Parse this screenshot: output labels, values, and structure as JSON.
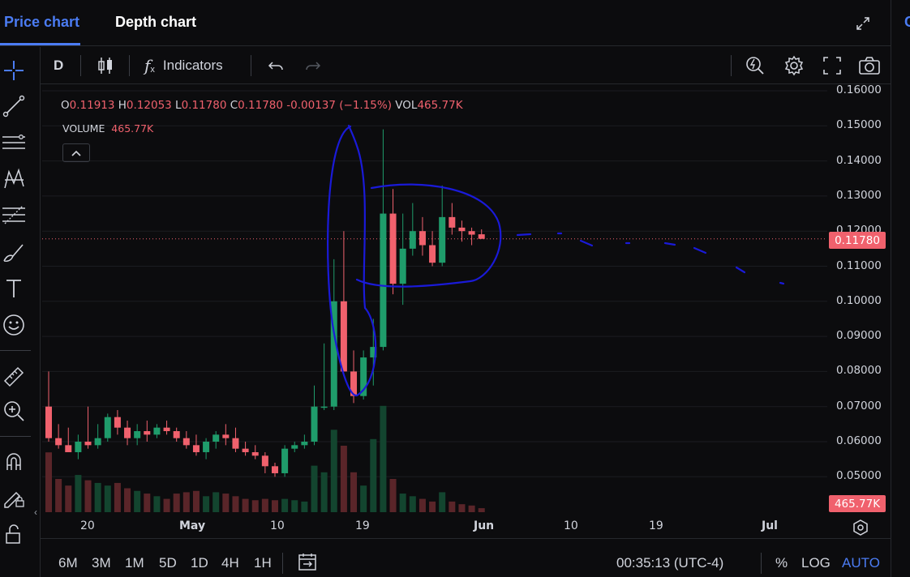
{
  "tabs": [
    {
      "label": "Price chart",
      "active": true
    },
    {
      "label": "Depth chart",
      "active": false
    }
  ],
  "right_peek_label": "C",
  "toolbar": {
    "interval": "D",
    "indicators_label": "Indicators",
    "indicators_glyph": "f",
    "indicators_sub": "x"
  },
  "legend": {
    "open_label": "O",
    "open": "0.11913",
    "high_label": "H",
    "high": "0.12053",
    "low_label": "L",
    "low": "0.11780",
    "close_label": "C",
    "close": "0.11780",
    "change": "-0.00137 (−1.15%)",
    "vol_label": "VOL",
    "vol": "465.77K",
    "volume_label": "VOLUME",
    "volume_value": "465.77K"
  },
  "price_axis": [
    "0.16000",
    "0.15000",
    "0.14000",
    "0.13000",
    "0.12000",
    "0.11000",
    "0.10000",
    "0.09000",
    "0.08000",
    "0.07000",
    "0.06000",
    "0.05000"
  ],
  "last_price_tag": "0.11780",
  "volume_tag": "465.77K",
  "time_axis": [
    {
      "label": "20",
      "bold": false
    },
    {
      "label": "May",
      "bold": true
    },
    {
      "label": "10",
      "bold": false
    },
    {
      "label": "19",
      "bold": false
    },
    {
      "label": "Jun",
      "bold": true
    },
    {
      "label": "10",
      "bold": false
    },
    {
      "label": "19",
      "bold": false
    },
    {
      "label": "Jul",
      "bold": true
    }
  ],
  "bottom": {
    "ranges": [
      "6M",
      "3M",
      "1M",
      "5D",
      "1D",
      "4H",
      "1H"
    ],
    "clock": "00:35:13 (UTC-4)",
    "percent": "%",
    "log": "LOG",
    "auto": "AUTO"
  },
  "colors": {
    "up": "#1f9c6b",
    "down": "#f0616d",
    "accent": "#4b7cf3",
    "annotation": "#1a1ad8"
  },
  "chart_data": {
    "type": "candlestick",
    "ylim": [
      0.045,
      0.16
    ],
    "candles": [
      {
        "o": 0.07,
        "h": 0.08,
        "l": 0.06,
        "c": 0.061,
        "v": 45
      },
      {
        "o": 0.061,
        "h": 0.065,
        "l": 0.058,
        "c": 0.059,
        "v": 25
      },
      {
        "o": 0.059,
        "h": 0.064,
        "l": 0.057,
        "c": 0.057,
        "v": 20
      },
      {
        "o": 0.057,
        "h": 0.062,
        "l": 0.055,
        "c": 0.06,
        "v": 28
      },
      {
        "o": 0.06,
        "h": 0.07,
        "l": 0.058,
        "c": 0.059,
        "v": 24
      },
      {
        "o": 0.059,
        "h": 0.065,
        "l": 0.058,
        "c": 0.061,
        "v": 22
      },
      {
        "o": 0.061,
        "h": 0.068,
        "l": 0.06,
        "c": 0.067,
        "v": 20
      },
      {
        "o": 0.067,
        "h": 0.069,
        "l": 0.062,
        "c": 0.064,
        "v": 22
      },
      {
        "o": 0.064,
        "h": 0.066,
        "l": 0.059,
        "c": 0.061,
        "v": 18
      },
      {
        "o": 0.061,
        "h": 0.065,
        "l": 0.059,
        "c": 0.063,
        "v": 16
      },
      {
        "o": 0.063,
        "h": 0.066,
        "l": 0.06,
        "c": 0.062,
        "v": 14
      },
      {
        "o": 0.062,
        "h": 0.065,
        "l": 0.061,
        "c": 0.064,
        "v": 12
      },
      {
        "o": 0.064,
        "h": 0.066,
        "l": 0.062,
        "c": 0.063,
        "v": 10
      },
      {
        "o": 0.063,
        "h": 0.064,
        "l": 0.06,
        "c": 0.061,
        "v": 14
      },
      {
        "o": 0.061,
        "h": 0.063,
        "l": 0.058,
        "c": 0.059,
        "v": 15
      },
      {
        "o": 0.059,
        "h": 0.062,
        "l": 0.056,
        "c": 0.057,
        "v": 16
      },
      {
        "o": 0.057,
        "h": 0.061,
        "l": 0.055,
        "c": 0.06,
        "v": 12
      },
      {
        "o": 0.06,
        "h": 0.063,
        "l": 0.058,
        "c": 0.062,
        "v": 15
      },
      {
        "o": 0.062,
        "h": 0.065,
        "l": 0.059,
        "c": 0.061,
        "v": 14
      },
      {
        "o": 0.061,
        "h": 0.064,
        "l": 0.057,
        "c": 0.058,
        "v": 12
      },
      {
        "o": 0.058,
        "h": 0.06,
        "l": 0.056,
        "c": 0.057,
        "v": 10
      },
      {
        "o": 0.057,
        "h": 0.059,
        "l": 0.055,
        "c": 0.056,
        "v": 9
      },
      {
        "o": 0.056,
        "h": 0.057,
        "l": 0.051,
        "c": 0.053,
        "v": 10
      },
      {
        "o": 0.053,
        "h": 0.054,
        "l": 0.05,
        "c": 0.051,
        "v": 9
      },
      {
        "o": 0.051,
        "h": 0.059,
        "l": 0.05,
        "c": 0.058,
        "v": 10
      },
      {
        "o": 0.058,
        "h": 0.06,
        "l": 0.057,
        "c": 0.059,
        "v": 9
      },
      {
        "o": 0.059,
        "h": 0.062,
        "l": 0.058,
        "c": 0.06,
        "v": 8
      },
      {
        "o": 0.06,
        "h": 0.076,
        "l": 0.059,
        "c": 0.07,
        "v": 35
      },
      {
        "o": 0.07,
        "h": 0.088,
        "l": 0.069,
        "c": 0.07,
        "v": 30
      },
      {
        "o": 0.07,
        "h": 0.112,
        "l": 0.069,
        "c": 0.1,
        "v": 62
      },
      {
        "o": 0.1,
        "h": 0.12,
        "l": 0.08,
        "c": 0.08,
        "v": 50
      },
      {
        "o": 0.08,
        "h": 0.086,
        "l": 0.071,
        "c": 0.073,
        "v": 30
      },
      {
        "o": 0.073,
        "h": 0.086,
        "l": 0.072,
        "c": 0.084,
        "v": 20
      },
      {
        "o": 0.084,
        "h": 0.095,
        "l": 0.076,
        "c": 0.087,
        "v": 55
      },
      {
        "o": 0.087,
        "h": 0.149,
        "l": 0.086,
        "c": 0.125,
        "v": 80
      },
      {
        "o": 0.125,
        "h": 0.132,
        "l": 0.102,
        "c": 0.105,
        "v": 25
      },
      {
        "o": 0.105,
        "h": 0.125,
        "l": 0.099,
        "c": 0.115,
        "v": 14
      },
      {
        "o": 0.115,
        "h": 0.128,
        "l": 0.113,
        "c": 0.12,
        "v": 12
      },
      {
        "o": 0.12,
        "h": 0.124,
        "l": 0.113,
        "c": 0.116,
        "v": 10
      },
      {
        "o": 0.116,
        "h": 0.12,
        "l": 0.11,
        "c": 0.111,
        "v": 8
      },
      {
        "o": 0.111,
        "h": 0.133,
        "l": 0.11,
        "c": 0.124,
        "v": 15
      },
      {
        "o": 0.124,
        "h": 0.128,
        "l": 0.119,
        "c": 0.121,
        "v": 8
      },
      {
        "o": 0.121,
        "h": 0.123,
        "l": 0.117,
        "c": 0.12,
        "v": 6
      },
      {
        "o": 0.12,
        "h": 0.121,
        "l": 0.116,
        "c": 0.119,
        "v": 5
      },
      {
        "o": 0.1191,
        "h": 0.1205,
        "l": 0.1178,
        "c": 0.1178,
        "v": 3
      }
    ]
  }
}
